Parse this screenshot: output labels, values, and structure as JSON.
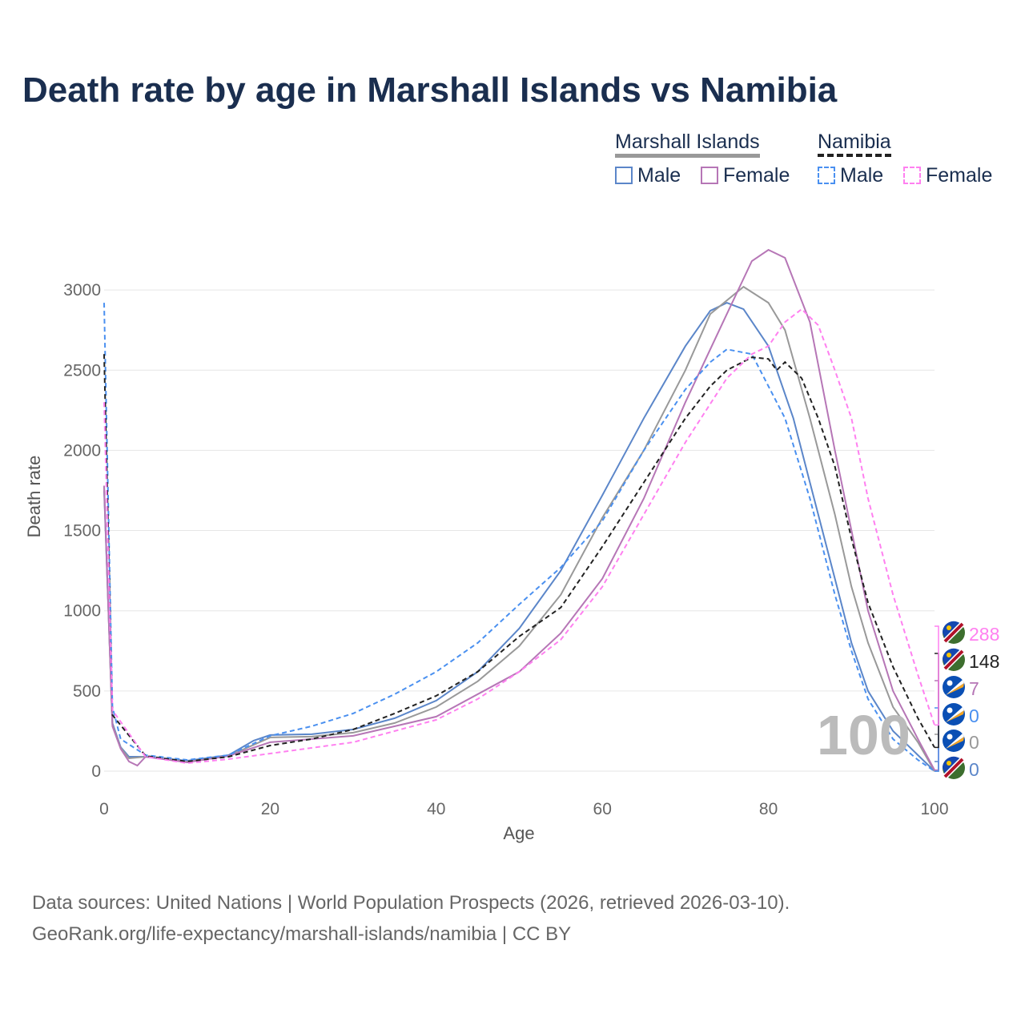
{
  "title": "Death rate by age in Marshall Islands vs Namibia",
  "legend": {
    "groups": [
      {
        "name": "Marshall Islands",
        "items": [
          "Male",
          "Female"
        ]
      },
      {
        "name": "Namibia",
        "items": [
          "Male",
          "Female"
        ]
      }
    ]
  },
  "footer": {
    "line1": "Data sources: United Nations | World Population Prospects (2026, retrieved 2026-03-10).",
    "line2": "GeoRank.org/life-expectancy/marshall-islands/namibia | CC BY"
  },
  "watermark": "100",
  "chart_data": {
    "type": "line",
    "title": "Death rate by age in Marshall Islands vs Namibia",
    "xlabel": "Age",
    "ylabel": "Death rate",
    "xlim": [
      0,
      100
    ],
    "ylim": [
      0,
      3250
    ],
    "xticks": [
      0,
      20,
      40,
      60,
      80,
      100
    ],
    "yticks": [
      0,
      500,
      1000,
      1500,
      2000,
      2500,
      3000
    ],
    "series": [
      {
        "name": "Marshall Islands Male",
        "color": "#5b86c9",
        "dash": false,
        "end_label": "0",
        "x": [
          0,
          1,
          2,
          3,
          5,
          10,
          15,
          18,
          20,
          25,
          30,
          35,
          40,
          45,
          50,
          55,
          60,
          65,
          70,
          73,
          75,
          77,
          80,
          83,
          85,
          88,
          90,
          92,
          95,
          98,
          100
        ],
        "y": [
          1750,
          300,
          150,
          90,
          90,
          65,
          100,
          190,
          225,
          230,
          260,
          330,
          440,
          620,
          890,
          1250,
          1720,
          2200,
          2650,
          2870,
          2920,
          2880,
          2650,
          2200,
          1800,
          1200,
          800,
          500,
          250,
          100,
          0
        ]
      },
      {
        "name": "Marshall Islands",
        "color": "#999999",
        "dash": false,
        "end_label": "0",
        "x": [
          0,
          1,
          2,
          3,
          5,
          10,
          15,
          20,
          25,
          30,
          35,
          40,
          45,
          50,
          55,
          60,
          65,
          70,
          73,
          77,
          80,
          82,
          85,
          88,
          90,
          92,
          95,
          98,
          100
        ],
        "y": [
          1780,
          290,
          145,
          80,
          90,
          60,
          95,
          210,
          215,
          240,
          300,
          400,
          560,
          780,
          1100,
          1580,
          2000,
          2500,
          2850,
          3020,
          2920,
          2750,
          2200,
          1600,
          1150,
          800,
          400,
          180,
          0
        ]
      },
      {
        "name": "Marshall Islands Female",
        "color": "#b676b6",
        "dash": false,
        "end_label": "7",
        "x": [
          0,
          1,
          2,
          3,
          4,
          5,
          10,
          15,
          20,
          30,
          40,
          50,
          55,
          60,
          65,
          70,
          75,
          78,
          80,
          82,
          85,
          88,
          90,
          92,
          95,
          98,
          100
        ],
        "y": [
          1780,
          280,
          140,
          60,
          35,
          90,
          55,
          95,
          180,
          220,
          340,
          620,
          860,
          1200,
          1700,
          2300,
          2850,
          3180,
          3250,
          3200,
          2800,
          2000,
          1500,
          1000,
          500,
          200,
          7
        ]
      },
      {
        "name": "Namibia Male",
        "color": "#4a90f0",
        "dash": true,
        "end_label": "0",
        "x": [
          0,
          1,
          2,
          5,
          10,
          15,
          20,
          25,
          30,
          35,
          40,
          45,
          50,
          55,
          60,
          65,
          70,
          73,
          75,
          78,
          80,
          82,
          85,
          88,
          90,
          92,
          95,
          98,
          100
        ],
        "y": [
          2920,
          400,
          200,
          100,
          70,
          100,
          220,
          280,
          360,
          480,
          620,
          800,
          1040,
          1270,
          1560,
          2000,
          2380,
          2550,
          2630,
          2600,
          2400,
          2200,
          1700,
          1100,
          750,
          450,
          200,
          70,
          0
        ]
      },
      {
        "name": "Namibia",
        "color": "#222222",
        "dash": true,
        "end_label": "148",
        "x": [
          0,
          1,
          5,
          10,
          15,
          20,
          25,
          30,
          35,
          40,
          45,
          50,
          55,
          60,
          65,
          70,
          73,
          75,
          78,
          80,
          81,
          82,
          84,
          86,
          88,
          90,
          92,
          95,
          98,
          100
        ],
        "y": [
          2600,
          350,
          95,
          60,
          90,
          160,
          200,
          260,
          360,
          470,
          620,
          840,
          1020,
          1400,
          1800,
          2200,
          2400,
          2500,
          2580,
          2570,
          2500,
          2550,
          2450,
          2200,
          1900,
          1450,
          1050,
          650,
          330,
          148
        ]
      },
      {
        "name": "Namibia Female",
        "color": "#ff80f0",
        "dash": true,
        "end_label": "288",
        "x": [
          0,
          1,
          5,
          10,
          15,
          20,
          30,
          40,
          45,
          50,
          55,
          60,
          65,
          70,
          75,
          78,
          80,
          82,
          84,
          86,
          88,
          90,
          92,
          95,
          98,
          100
        ],
        "y": [
          2300,
          380,
          90,
          50,
          75,
          110,
          180,
          320,
          450,
          620,
          820,
          1150,
          1600,
          2050,
          2450,
          2600,
          2650,
          2800,
          2880,
          2780,
          2500,
          2200,
          1700,
          1100,
          600,
          288
        ]
      }
    ]
  }
}
